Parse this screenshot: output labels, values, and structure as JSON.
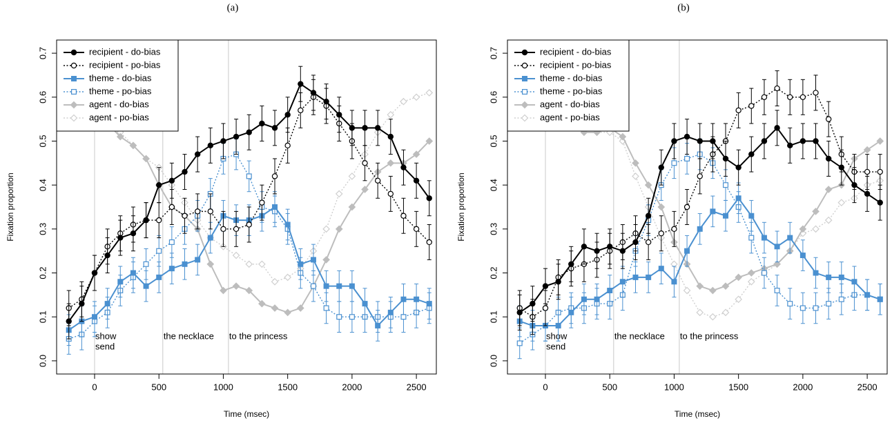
{
  "chart_data": [
    {
      "type": "line",
      "title": "(a)",
      "xlabel": "Time (msec)",
      "ylabel": "Fixation proportion",
      "x": [
        -200,
        -100,
        0,
        100,
        200,
        300,
        400,
        500,
        600,
        700,
        800,
        900,
        1000,
        1100,
        1200,
        1300,
        1400,
        1500,
        1600,
        1700,
        1800,
        1900,
        2000,
        2100,
        2200,
        2300,
        2400,
        2500,
        2600
      ],
      "xlim": [
        -295,
        2655
      ],
      "ylim": [
        -0.03,
        0.73
      ],
      "xticks": [
        0,
        500,
        1000,
        1500,
        2000,
        2500
      ],
      "yticks": [
        {
          "value": 0,
          "label": "0.0"
        },
        0.1,
        0.2,
        0.3,
        0.4,
        0.5,
        0.6,
        0.7
      ],
      "legend": "topleft",
      "markers": [
        {
          "x": 0,
          "labels": [
            "show",
            "send"
          ]
        },
        {
          "x": 530,
          "labels": [
            "the necklace"
          ]
        },
        {
          "x": 1040,
          "labels": [
            "to the princess"
          ]
        }
      ],
      "series": [
        {
          "name": "recipient - do-bias",
          "color": "#000000",
          "linestyle": "solid",
          "marker": "circle",
          "filled": true,
          "error": 0.04,
          "values": [
            0.09,
            0.13,
            0.2,
            0.24,
            0.28,
            0.29,
            0.32,
            0.4,
            0.41,
            0.43,
            0.47,
            0.49,
            0.5,
            0.51,
            0.52,
            0.54,
            0.53,
            0.56,
            0.63,
            0.61,
            0.59,
            0.56,
            0.53,
            0.53,
            0.53,
            0.51,
            0.44,
            0.41,
            0.37
          ]
        },
        {
          "name": "recipient - po-bias",
          "color": "#000000",
          "linestyle": "dotted",
          "marker": "circle",
          "filled": false,
          "error": 0.04,
          "values": [
            0.12,
            0.14,
            0.2,
            0.26,
            0.29,
            0.31,
            0.32,
            0.32,
            0.35,
            0.33,
            0.34,
            0.34,
            0.3,
            0.3,
            0.31,
            0.36,
            0.42,
            0.49,
            0.57,
            0.6,
            0.58,
            0.54,
            0.5,
            0.45,
            0.41,
            0.38,
            0.33,
            0.3,
            0.27
          ]
        },
        {
          "name": "theme - do-bias",
          "color": "#4a90d0",
          "linestyle": "solid",
          "marker": "square",
          "filled": true,
          "error": 0.035,
          "values": [
            0.07,
            0.09,
            0.1,
            0.13,
            0.18,
            0.2,
            0.17,
            0.19,
            0.21,
            0.22,
            0.23,
            0.28,
            0.33,
            0.32,
            0.32,
            0.33,
            0.35,
            0.31,
            0.22,
            0.23,
            0.17,
            0.17,
            0.17,
            0.13,
            0.08,
            0.11,
            0.14,
            0.14,
            0.13
          ]
        },
        {
          "name": "theme - po-bias",
          "color": "#4a90d0",
          "linestyle": "dotted",
          "marker": "square",
          "filled": false,
          "error": 0.035,
          "values": [
            0.05,
            0.06,
            0.09,
            0.11,
            0.16,
            0.19,
            0.22,
            0.25,
            0.27,
            0.3,
            0.33,
            0.38,
            0.46,
            0.47,
            0.42,
            0.35,
            0.34,
            0.3,
            0.2,
            0.17,
            0.12,
            0.1,
            0.1,
            0.1,
            0.1,
            0.1,
            0.1,
            0.11,
            0.12
          ]
        },
        {
          "name": "agent - do-bias",
          "color": "#bdbdbd",
          "linestyle": "solid",
          "marker": "diamond",
          "filled": true,
          "values": [
            0.62,
            0.6,
            0.57,
            0.54,
            0.51,
            0.49,
            0.46,
            0.4,
            0.35,
            0.33,
            0.3,
            0.22,
            0.16,
            0.17,
            0.16,
            0.13,
            0.12,
            0.11,
            0.12,
            0.17,
            0.23,
            0.3,
            0.35,
            0.39,
            0.43,
            0.45,
            0.45,
            0.47,
            0.5
          ]
        },
        {
          "name": "agent - po-bias",
          "color": "#cfcfcf",
          "linestyle": "dotted",
          "marker": "diamond",
          "filled": false,
          "values": [
            0.63,
            0.61,
            0.58,
            0.55,
            0.52,
            0.49,
            0.46,
            0.44,
            0.4,
            0.36,
            0.32,
            0.28,
            0.26,
            0.24,
            0.22,
            0.22,
            0.18,
            0.19,
            0.21,
            0.25,
            0.3,
            0.38,
            0.42,
            0.47,
            0.52,
            0.56,
            0.59,
            0.6,
            0.61
          ]
        }
      ]
    },
    {
      "type": "line",
      "title": "(b)",
      "xlabel": "Time (msec)",
      "ylabel": "Fixation proportion",
      "x": [
        -200,
        -100,
        0,
        100,
        200,
        300,
        400,
        500,
        600,
        700,
        800,
        900,
        1000,
        1100,
        1200,
        1300,
        1400,
        1500,
        1600,
        1700,
        1800,
        1900,
        2000,
        2100,
        2200,
        2300,
        2400,
        2500,
        2600
      ],
      "xlim": [
        -295,
        2655
      ],
      "ylim": [
        -0.03,
        0.73
      ],
      "xticks": [
        0,
        500,
        1000,
        1500,
        2000,
        2500
      ],
      "yticks": [
        {
          "value": 0,
          "label": "0.0"
        },
        0.1,
        0.2,
        0.3,
        0.4,
        0.5,
        0.6,
        0.7
      ],
      "legend": "topleft",
      "markers": [
        {
          "x": 0,
          "labels": [
            "show",
            "send"
          ]
        },
        {
          "x": 530,
          "labels": [
            "the necklace"
          ]
        },
        {
          "x": 1040,
          "labels": [
            "to the princess"
          ]
        }
      ],
      "series": [
        {
          "name": "recipient - do-bias",
          "color": "#000000",
          "linestyle": "solid",
          "marker": "circle",
          "filled": true,
          "error": 0.04,
          "values": [
            0.11,
            0.13,
            0.17,
            0.18,
            0.22,
            0.26,
            0.25,
            0.26,
            0.25,
            0.27,
            0.33,
            0.44,
            0.5,
            0.51,
            0.5,
            0.5,
            0.46,
            0.44,
            0.47,
            0.5,
            0.53,
            0.49,
            0.5,
            0.5,
            0.46,
            0.44,
            0.4,
            0.38,
            0.36
          ]
        },
        {
          "name": "recipient - po-bias",
          "color": "#000000",
          "linestyle": "dotted",
          "marker": "circle",
          "filled": false,
          "error": 0.04,
          "values": [
            0.12,
            0.1,
            0.12,
            0.19,
            0.21,
            0.22,
            0.23,
            0.25,
            0.27,
            0.29,
            0.27,
            0.29,
            0.3,
            0.35,
            0.42,
            0.47,
            0.5,
            0.57,
            0.58,
            0.6,
            0.62,
            0.6,
            0.6,
            0.61,
            0.55,
            0.47,
            0.43,
            0.43,
            0.43
          ]
        },
        {
          "name": "theme - do-bias",
          "color": "#4a90d0",
          "linestyle": "solid",
          "marker": "square",
          "filled": true,
          "error": 0.035,
          "values": [
            0.09,
            0.08,
            0.08,
            0.08,
            0.11,
            0.14,
            0.14,
            0.16,
            0.18,
            0.19,
            0.19,
            0.21,
            0.18,
            0.25,
            0.3,
            0.34,
            0.33,
            0.37,
            0.33,
            0.28,
            0.26,
            0.28,
            0.24,
            0.2,
            0.19,
            0.19,
            0.18,
            0.15,
            0.14
          ]
        },
        {
          "name": "theme - po-bias",
          "color": "#4a90d0",
          "linestyle": "dotted",
          "marker": "square",
          "filled": false,
          "error": 0.035,
          "values": [
            0.04,
            0.06,
            0.08,
            0.11,
            0.12,
            0.12,
            0.13,
            0.13,
            0.15,
            0.25,
            0.32,
            0.4,
            0.45,
            0.46,
            0.47,
            0.45,
            0.4,
            0.35,
            0.28,
            0.2,
            0.16,
            0.13,
            0.12,
            0.12,
            0.13,
            0.14,
            0.15,
            0.15,
            0.14
          ]
        },
        {
          "name": "agent - do-bias",
          "color": "#bdbdbd",
          "linestyle": "solid",
          "marker": "diamond",
          "filled": true,
          "values": [
            0.62,
            0.6,
            0.58,
            0.56,
            0.54,
            0.52,
            0.52,
            0.53,
            0.51,
            0.45,
            0.4,
            0.35,
            0.27,
            0.22,
            0.17,
            0.16,
            0.17,
            0.19,
            0.2,
            0.21,
            0.22,
            0.25,
            0.3,
            0.34,
            0.39,
            0.4,
            0.46,
            0.48,
            0.5
          ]
        },
        {
          "name": "agent - po-bias",
          "color": "#cfcfcf",
          "linestyle": "dotted",
          "marker": "diamond",
          "filled": false,
          "values": [
            0.62,
            0.6,
            0.58,
            0.56,
            0.55,
            0.53,
            0.52,
            0.52,
            0.5,
            0.42,
            0.35,
            0.28,
            0.22,
            0.16,
            0.11,
            0.1,
            0.11,
            0.14,
            0.18,
            0.2,
            0.22,
            0.25,
            0.29,
            0.3,
            0.32,
            0.36,
            0.37,
            0.4,
            0.41
          ]
        }
      ]
    }
  ]
}
